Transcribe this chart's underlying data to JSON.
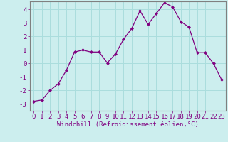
{
  "x": [
    0,
    1,
    2,
    3,
    4,
    5,
    6,
    7,
    8,
    9,
    10,
    11,
    12,
    13,
    14,
    15,
    16,
    17,
    18,
    19,
    20,
    21,
    22,
    23
  ],
  "y": [
    -2.8,
    -2.7,
    -2.0,
    -1.5,
    -0.5,
    0.85,
    1.0,
    0.85,
    0.85,
    0.05,
    0.7,
    1.8,
    2.6,
    3.9,
    2.9,
    3.7,
    4.5,
    4.2,
    3.1,
    2.7,
    0.8,
    0.8,
    0.0,
    -1.2
  ],
  "line_color": "#800080",
  "marker": "D",
  "marker_size": 2.0,
  "bg_color": "#cceeee",
  "grid_color": "#aadddd",
  "xlabel": "Windchill (Refroidissement éolien,°C)",
  "xlim": [
    -0.5,
    23.5
  ],
  "ylim": [
    -3.5,
    4.6
  ],
  "yticks": [
    -3,
    -2,
    -1,
    0,
    1,
    2,
    3,
    4
  ],
  "xticks": [
    0,
    1,
    2,
    3,
    4,
    5,
    6,
    7,
    8,
    9,
    10,
    11,
    12,
    13,
    14,
    15,
    16,
    17,
    18,
    19,
    20,
    21,
    22,
    23
  ],
  "spine_color": "#808080",
  "label_color": "#800080",
  "tick_color": "#800080",
  "font_size": 6.5
}
